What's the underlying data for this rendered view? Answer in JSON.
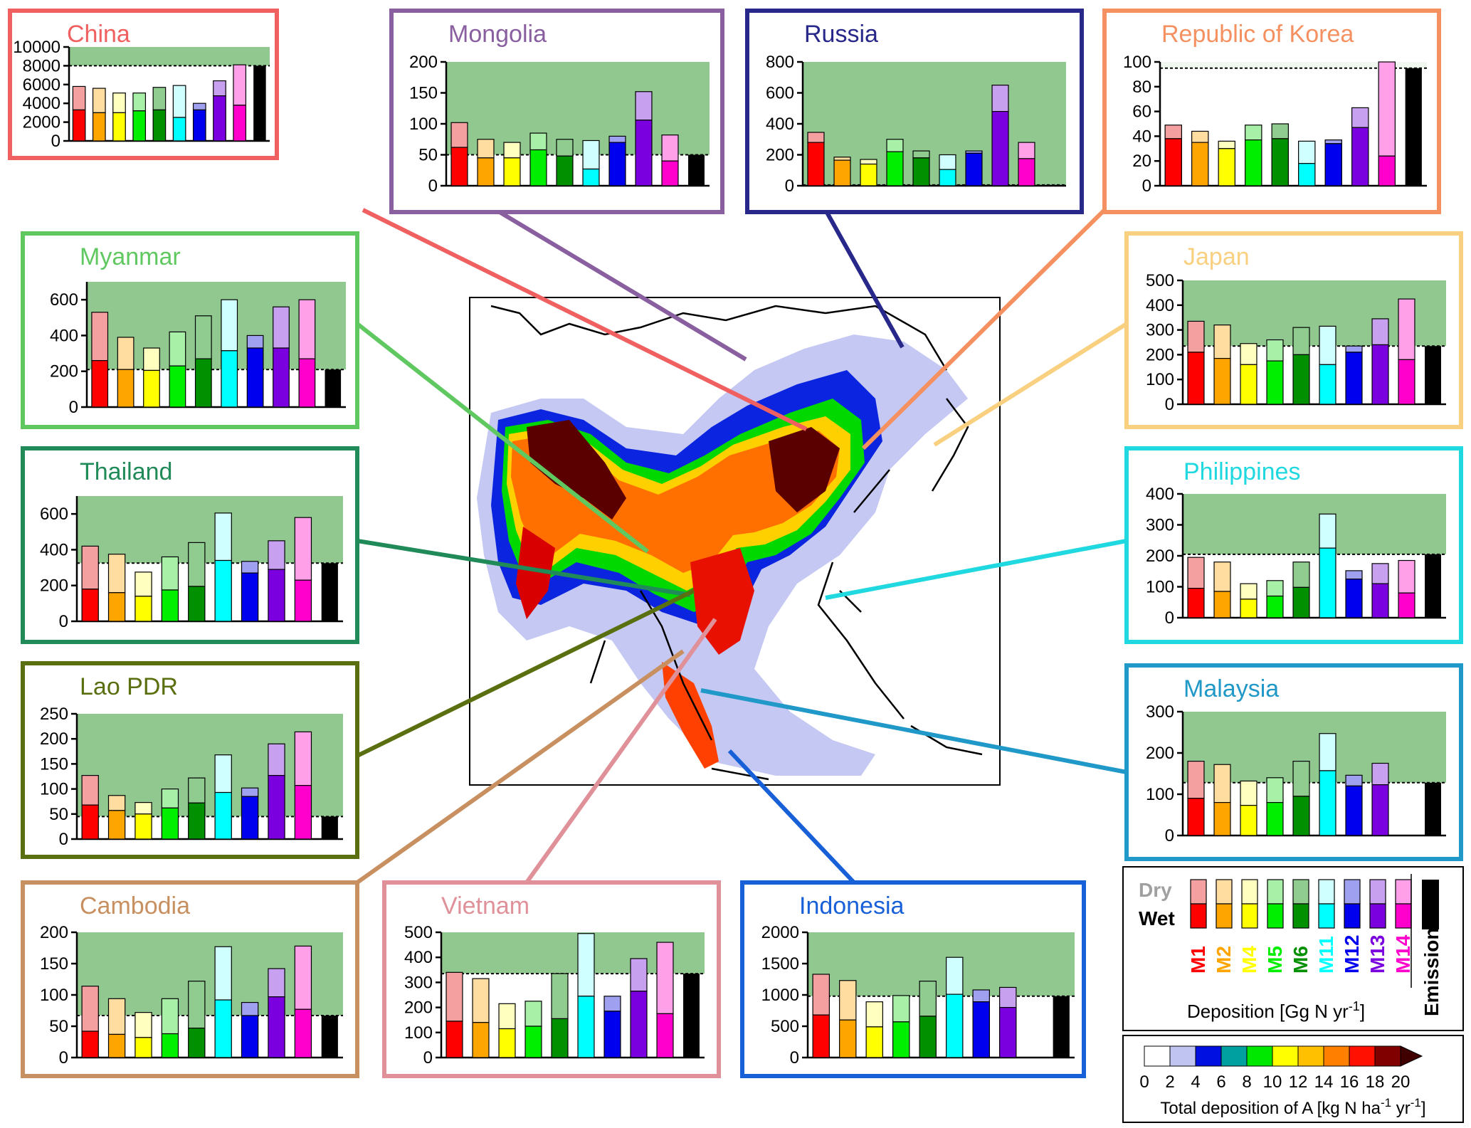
{
  "chart_data": {
    "type": "bar",
    "stack_parts": [
      "Wet",
      "Dry"
    ],
    "models": [
      "M1",
      "M2",
      "M4",
      "M5",
      "M6",
      "M11",
      "M12",
      "M13",
      "M14"
    ],
    "extra_bar": "Emission",
    "model_colors": {
      "wet": [
        "#ff0000",
        "#ffa500",
        "#ffff00",
        "#00ee00",
        "#009000",
        "#00ffff",
        "#0000ee",
        "#7a00e0",
        "#ff00cc"
      ],
      "dry": [
        "#f5a0a0",
        "#ffdca0",
        "#ffffc0",
        "#a8f0a8",
        "#90cc90",
        "#d0ffff",
        "#a0a0f0",
        "#c8a0f0",
        "#ffa0e8"
      ]
    },
    "emission_color": "#000000",
    "shade_over_color": "#90c890",
    "shade_under_color": "#f0f8f0",
    "countries": [
      {
        "name": "China",
        "color": "#f06060",
        "yticks": [
          0,
          2000,
          4000,
          6000,
          8000,
          10000
        ],
        "ylim": [
          0,
          10000
        ],
        "emission": 8000,
        "wet": [
          3300,
          3000,
          3000,
          3200,
          3300,
          2500,
          3300,
          4800,
          3800
        ],
        "total": [
          5800,
          5600,
          5100,
          5100,
          5700,
          5900,
          4000,
          6400,
          8100
        ]
      },
      {
        "name": "Mongolia",
        "color": "#8a5fa0",
        "yticks": [
          0,
          50,
          100,
          150,
          200
        ],
        "ylim": [
          0,
          200
        ],
        "emission": 50,
        "wet": [
          62,
          45,
          45,
          58,
          48,
          27,
          70,
          106,
          40
        ],
        "total": [
          102,
          75,
          70,
          85,
          75,
          73,
          80,
          152,
          82
        ]
      },
      {
        "name": "Russia",
        "color": "#28288a",
        "yticks": [
          0,
          200,
          400,
          600,
          800
        ],
        "ylim": [
          0,
          800
        ],
        "emission": 5,
        "wet": [
          280,
          165,
          140,
          220,
          180,
          105,
          210,
          480,
          175
        ],
        "total": [
          345,
          185,
          170,
          300,
          225,
          200,
          225,
          650,
          280
        ]
      },
      {
        "name": "Republic of Korea",
        "color": "#f59060",
        "yticks": [
          0,
          20,
          40,
          60,
          80,
          100
        ],
        "ylim": [
          0,
          100
        ],
        "emission": 95,
        "wet": [
          38,
          35,
          30,
          37,
          38,
          18,
          34,
          47,
          24
        ],
        "total": [
          49,
          44,
          36,
          49,
          50,
          36,
          37,
          63,
          100
        ]
      },
      {
        "name": "Myanmar",
        "color": "#60c860",
        "yticks": [
          0,
          200,
          400,
          600
        ],
        "ylim": [
          0,
          700
        ],
        "emission": 210,
        "wet": [
          260,
          210,
          205,
          230,
          270,
          315,
          330,
          330,
          270
        ],
        "total": [
          530,
          390,
          330,
          420,
          510,
          600,
          400,
          560,
          600
        ]
      },
      {
        "name": "Japan",
        "color": "#f8d080",
        "yticks": [
          0,
          100,
          200,
          300,
          400,
          500
        ],
        "ylim": [
          0,
          500
        ],
        "emission": 235,
        "wet": [
          210,
          185,
          160,
          175,
          200,
          160,
          210,
          240,
          180
        ],
        "total": [
          335,
          320,
          245,
          260,
          310,
          315,
          235,
          345,
          425
        ]
      },
      {
        "name": "Thailand",
        "color": "#208a58",
        "yticks": [
          0,
          200,
          400,
          600
        ],
        "ylim": [
          0,
          700
        ],
        "emission": 325,
        "wet": [
          180,
          160,
          140,
          175,
          195,
          340,
          270,
          290,
          230
        ],
        "total": [
          420,
          375,
          275,
          360,
          440,
          605,
          335,
          450,
          580
        ]
      },
      {
        "name": "Philippines",
        "color": "#20d8e0",
        "yticks": [
          0,
          100,
          200,
          300,
          400
        ],
        "ylim": [
          0,
          400
        ],
        "emission": 205,
        "wet": [
          95,
          85,
          60,
          70,
          98,
          225,
          125,
          110,
          80
        ],
        "total": [
          195,
          180,
          110,
          120,
          180,
          335,
          152,
          175,
          185
        ]
      },
      {
        "name": "Lao PDR",
        "color": "#5a7010",
        "yticks": [
          0,
          50,
          100,
          150,
          200,
          250
        ],
        "ylim": [
          0,
          250
        ],
        "emission": 45,
        "wet": [
          68,
          57,
          50,
          62,
          72,
          93,
          85,
          127,
          107
        ],
        "total": [
          127,
          87,
          73,
          100,
          122,
          168,
          102,
          190,
          214
        ]
      },
      {
        "name": "Malaysia",
        "color": "#2098c8",
        "yticks": [
          0,
          100,
          200,
          300
        ],
        "ylim": [
          0,
          300
        ],
        "emission": 128,
        "wet": [
          90,
          80,
          73,
          80,
          95,
          157,
          120,
          123,
          null
        ],
        "total": [
          180,
          172,
          132,
          140,
          180,
          247,
          146,
          175,
          null
        ]
      },
      {
        "name": "Cambodia",
        "color": "#c89060",
        "yticks": [
          0,
          50,
          100,
          150,
          200
        ],
        "ylim": [
          0,
          200
        ],
        "emission": 67,
        "wet": [
          42,
          37,
          32,
          38,
          47,
          92,
          67,
          97,
          77
        ],
        "total": [
          114,
          94,
          72,
          94,
          122,
          177,
          88,
          142,
          178
        ]
      },
      {
        "name": "Vietnam",
        "color": "#e09098",
        "yticks": [
          0,
          100,
          200,
          300,
          400,
          500
        ],
        "ylim": [
          0,
          500
        ],
        "emission": 335,
        "wet": [
          145,
          140,
          115,
          125,
          155,
          245,
          185,
          265,
          175
        ],
        "total": [
          340,
          315,
          215,
          225,
          335,
          495,
          245,
          395,
          460
        ]
      },
      {
        "name": "Indonesia",
        "color": "#1860d8",
        "yticks": [
          0,
          500,
          1000,
          1500,
          2000
        ],
        "ylim": [
          0,
          2000
        ],
        "emission": 980,
        "wet": [
          680,
          600,
          490,
          570,
          660,
          1010,
          890,
          800,
          null
        ],
        "total": [
          1330,
          1230,
          890,
          990,
          1220,
          1600,
          1080,
          1120,
          null
        ]
      }
    ],
    "legend": {
      "dry_label": "Dry",
      "wet_label": "Wet",
      "emission_label": "Emission",
      "deposition_label_main": "Deposition [Gg N yr",
      "deposition_label_sup": "-1",
      "deposition_label_end": "]"
    },
    "colorbar": {
      "ticks": [
        "0",
        "2",
        "4",
        "6",
        "8",
        "10",
        "12",
        "14",
        "16",
        "18",
        "20"
      ],
      "colors": [
        "#ffffff",
        "#c0c4f0",
        "#0010e0",
        "#00a0a0",
        "#00e800",
        "#ffff00",
        "#ffc000",
        "#ff8000",
        "#ff1000",
        "#800000"
      ],
      "title_main": "Total deposition of A [kg N ha",
      "title_sup1": "-1",
      "title_mid": " yr",
      "title_sup2": "-1",
      "title_end": "]"
    }
  }
}
